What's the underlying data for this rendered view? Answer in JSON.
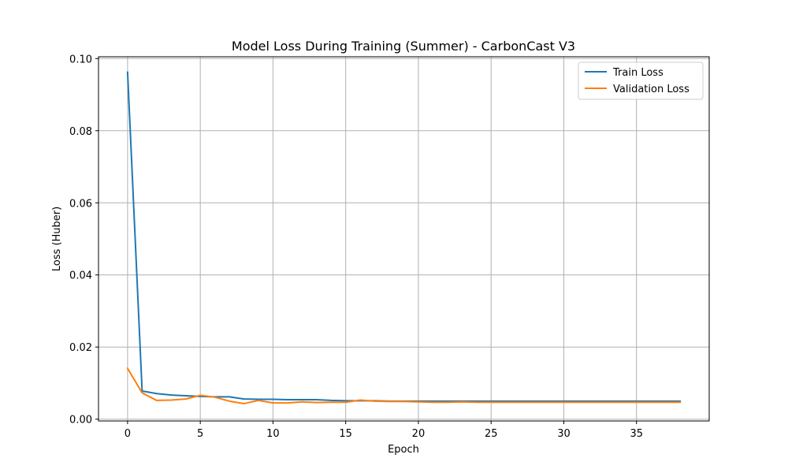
{
  "chart_data": {
    "type": "line",
    "title": "Model Loss During Training (Summer) - CarbonCast V3",
    "xlabel": "Epoch",
    "ylabel": "Loss (Huber)",
    "xlim": [
      -2,
      40
    ],
    "ylim": [
      -0.0005,
      0.1005
    ],
    "xticks": [
      0,
      5,
      10,
      15,
      20,
      25,
      30,
      35
    ],
    "yticks": [
      0.0,
      0.02,
      0.04,
      0.06,
      0.08,
      0.1
    ],
    "ytick_labels": [
      "0.00",
      "0.02",
      "0.04",
      "0.06",
      "0.08",
      "0.10"
    ],
    "grid": true,
    "legend_position": "top-right",
    "x": [
      0,
      1,
      2,
      3,
      4,
      5,
      6,
      7,
      8,
      9,
      10,
      11,
      12,
      13,
      14,
      15,
      16,
      17,
      18,
      19,
      20,
      21,
      22,
      23,
      24,
      25,
      26,
      27,
      28,
      29,
      30,
      31,
      32,
      33,
      34,
      35,
      36,
      37,
      38
    ],
    "series": [
      {
        "name": "Train Loss",
        "color": "#1f77b4",
        "values": [
          0.0962,
          0.0078,
          0.0071,
          0.0067,
          0.0065,
          0.0063,
          0.0062,
          0.0062,
          0.0056,
          0.0055,
          0.0055,
          0.0054,
          0.0054,
          0.0054,
          0.0052,
          0.0051,
          0.0051,
          0.0051,
          0.005,
          0.005,
          0.005,
          0.005,
          0.005,
          0.005,
          0.005,
          0.005,
          0.005,
          0.005,
          0.005,
          0.005,
          0.005,
          0.005,
          0.005,
          0.005,
          0.005,
          0.005,
          0.005,
          0.005,
          0.005
        ]
      },
      {
        "name": "Validation Loss",
        "color": "#ff7f0e",
        "values": [
          0.0141,
          0.0073,
          0.0052,
          0.0053,
          0.0056,
          0.0066,
          0.0061,
          0.005,
          0.0043,
          0.0052,
          0.0045,
          0.0045,
          0.0048,
          0.0046,
          0.0047,
          0.0047,
          0.0053,
          0.005,
          0.0049,
          0.0049,
          0.0048,
          0.0047,
          0.0047,
          0.0048,
          0.0047,
          0.0047,
          0.0047,
          0.0047,
          0.0047,
          0.0047,
          0.0047,
          0.0047,
          0.0047,
          0.0047,
          0.0047,
          0.0047,
          0.0047,
          0.0047,
          0.0047
        ]
      }
    ]
  }
}
